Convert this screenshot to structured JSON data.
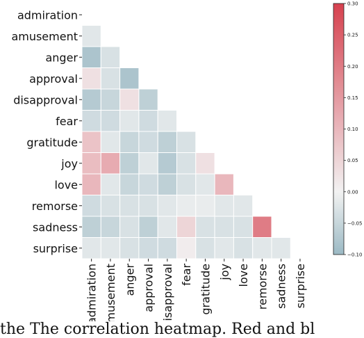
{
  "caption": "the The correlation heatmap. Red and bl",
  "chart_data": {
    "type": "heatmap",
    "title": "",
    "xlabel": "",
    "ylabel": "",
    "mask": "upper-triangle-including-diagonal",
    "grid": false,
    "labels": [
      "admiration",
      "amusement",
      "anger",
      "approval",
      "disapproval",
      "fear",
      "gratitude",
      "joy",
      "love",
      "remorse",
      "sadness",
      "surprise"
    ],
    "values": [
      [
        null,
        null,
        null,
        null,
        null,
        null,
        null,
        null,
        null,
        null,
        null,
        null
      ],
      [
        -0.02,
        null,
        null,
        null,
        null,
        null,
        null,
        null,
        null,
        null,
        null,
        null
      ],
      [
        -0.08,
        -0.03,
        null,
        null,
        null,
        null,
        null,
        null,
        null,
        null,
        null,
        null
      ],
      [
        0.03,
        -0.03,
        -0.08,
        null,
        null,
        null,
        null,
        null,
        null,
        null,
        null,
        null
      ],
      [
        -0.07,
        -0.05,
        0.03,
        -0.06,
        null,
        null,
        null,
        null,
        null,
        null,
        null,
        null
      ],
      [
        -0.04,
        -0.04,
        -0.02,
        -0.04,
        -0.02,
        null,
        null,
        null,
        null,
        null,
        null,
        null
      ],
      [
        0.08,
        -0.02,
        -0.05,
        -0.04,
        -0.06,
        -0.03,
        null,
        null,
        null,
        null,
        null,
        null
      ],
      [
        0.09,
        0.12,
        -0.06,
        -0.02,
        -0.07,
        -0.03,
        0.03,
        null,
        null,
        null,
        null,
        null
      ],
      [
        0.1,
        -0.02,
        -0.05,
        -0.04,
        -0.06,
        -0.03,
        -0.02,
        0.1,
        null,
        null,
        null,
        null
      ],
      [
        -0.04,
        -0.03,
        -0.03,
        -0.03,
        -0.02,
        -0.01,
        -0.01,
        -0.02,
        -0.02,
        null,
        null,
        null
      ],
      [
        -0.06,
        -0.05,
        -0.03,
        -0.06,
        -0.02,
        0.05,
        -0.03,
        -0.03,
        -0.03,
        0.2,
        null,
        null
      ],
      [
        -0.02,
        -0.02,
        -0.03,
        -0.04,
        -0.04,
        0.01,
        -0.03,
        -0.02,
        -0.03,
        -0.02,
        -0.02,
        null
      ]
    ],
    "colorbar": {
      "min": -0.1,
      "max": 0.3,
      "ticks": [
        -0.1,
        -0.05,
        0.0,
        0.05,
        0.1,
        0.15,
        0.2,
        0.25,
        0.3
      ],
      "tick_labels": [
        "−0.10",
        "−0.05",
        "0.00",
        "0.05",
        "0.10",
        "0.15",
        "0.20",
        "0.25",
        "0.30"
      ],
      "colors": {
        "negative": "#9bb9c4",
        "center": "#f2f2f2",
        "positive": "#d6414f"
      }
    }
  }
}
